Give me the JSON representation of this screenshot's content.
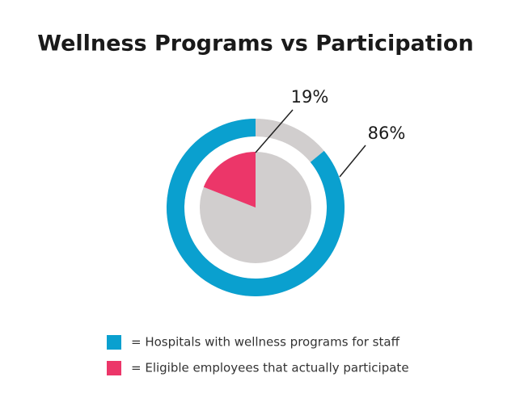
{
  "chart_data": {
    "type": "donut",
    "title": "Wellness Programs vs Participation",
    "track_color": "#d1cece",
    "series": [
      {
        "name": "= Hospitals with wellness programs for staff",
        "color": "#0aa0cf",
        "values": [
          86
        ],
        "value_labels": [
          "86%"
        ]
      },
      {
        "name": "= Eligible employees that actually participate",
        "color": "#ec3669",
        "values": [
          19
        ],
        "value_labels": [
          "19%"
        ]
      }
    ]
  }
}
